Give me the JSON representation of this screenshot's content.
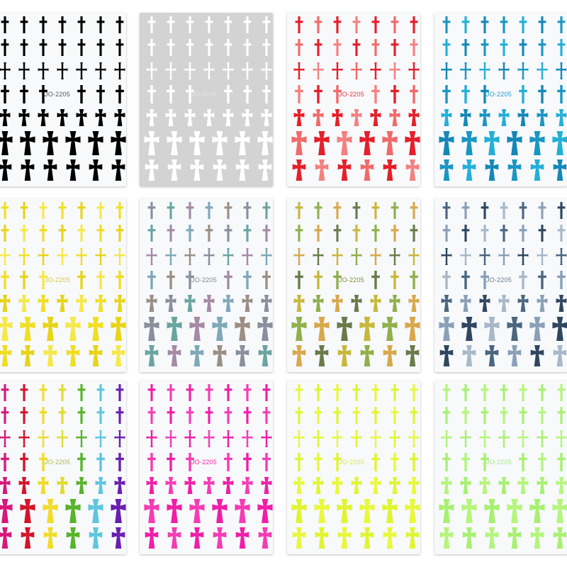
{
  "product_code": "JO-2205",
  "sheets": [
    {
      "name": "black",
      "label": "JO-2205",
      "background": "#f7f9fb",
      "label_color": "#555555",
      "colors": [
        "#000000"
      ]
    },
    {
      "name": "white",
      "label": "JO-2205",
      "background": "#d3d3d3",
      "label_color": "#e4e4e4",
      "colors": [
        "#ffffff"
      ]
    },
    {
      "name": "red",
      "label": "JO-2205",
      "background": "#f7f9fb",
      "label_color": "#e8323a",
      "colors": [
        "#e51f2a",
        "#f06a6a",
        "#e51f2a",
        "#f58080"
      ]
    },
    {
      "name": "blue",
      "label": "JO-2205",
      "background": "#f7f9fb",
      "label_color": "#1f9bc6",
      "colors": [
        "#1a96c4",
        "#22b0d8",
        "#1488b8"
      ]
    },
    {
      "name": "gold-yellow",
      "label": "JO-2205",
      "background": "#f7f9fb",
      "label_color": "#d9c830",
      "colors": [
        "#f0df22",
        "#e8d418",
        "#f5e84a"
      ]
    },
    {
      "name": "holographic",
      "label": "JO-2205",
      "background": "#f7f9fb",
      "label_color": "#7a8a90",
      "colors": [
        "#8a8f9c",
        "#6aa5a0",
        "#a58aa5",
        "#7fa8b8",
        "#9b8f85"
      ]
    },
    {
      "name": "holographic-gold",
      "label": "JO-2205",
      "background": "#f7f9fb",
      "label_color": "#8a8a40",
      "colors": [
        "#c8b83a",
        "#8fb04a",
        "#d8a84a",
        "#6a7a4a"
      ]
    },
    {
      "name": "holographic-silver",
      "label": "JO-2205",
      "background": "#f7f9fb",
      "label_color": "#6a7a90",
      "colors": [
        "#4a6680",
        "#8aa0b8",
        "#2f4660",
        "#a8b8c8"
      ]
    },
    {
      "name": "rainbow",
      "label": "JO-2205",
      "background": "#f7f9fb",
      "label_color": "#a8c040",
      "colors": [
        "#d8187a",
        "#d4142a",
        "#f0dc2a",
        "#e0dc30",
        "#58b42a",
        "#5ec6de",
        "#6a1fb0"
      ],
      "per_column": true
    },
    {
      "name": "magenta",
      "label": "JO-2205",
      "background": "#f7f9fb",
      "label_color": "#ee28a8",
      "colors": [
        "#f01ea8",
        "#f53cb4"
      ]
    },
    {
      "name": "neon-yellow",
      "label": "JO-2205",
      "background": "#f7f9fb",
      "label_color": "#d8e84a",
      "colors": [
        "#e8f83a",
        "#e0f530"
      ]
    },
    {
      "name": "neon-green",
      "label": "JO-2205",
      "background": "#f7f9fb",
      "label_color": "#a8e88a",
      "colors": [
        "#b4f57a",
        "#a8f070"
      ]
    }
  ]
}
